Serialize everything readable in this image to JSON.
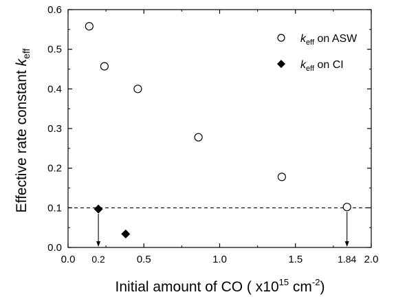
{
  "chart_data": {
    "type": "scatter",
    "xlim": [
      0.0,
      2.0
    ],
    "ylim": [
      0.0,
      0.6
    ],
    "x_ticks": [
      0.0,
      0.5,
      1.0,
      1.5,
      2.0
    ],
    "x_tick_labels": [
      "0.0",
      "0.5",
      "1.0",
      "1.5",
      "2.0"
    ],
    "y_ticks": [
      0.0,
      0.1,
      0.2,
      0.3,
      0.4,
      0.5,
      0.6
    ],
    "y_tick_labels": [
      "0.0",
      "0.1",
      "0.2",
      "0.3",
      "0.4",
      "0.5",
      "0.6"
    ],
    "xlabel": {
      "main": "Initial amount of CO ( x10",
      "sup": "15",
      "mid": " cm",
      "sup2": "-2",
      "end": ")"
    },
    "ylabel": {
      "main": "Effective rate constant ",
      "k": "k",
      "sub": "eff"
    },
    "grid": false,
    "legend_position": "top-right",
    "series": [
      {
        "name": {
          "k": "k",
          "sub": "eff",
          "rest": " on ASW"
        },
        "marker": "open-circle",
        "color": "#000000",
        "points": [
          {
            "x": 0.14,
            "y": 0.558
          },
          {
            "x": 0.24,
            "y": 0.457
          },
          {
            "x": 0.46,
            "y": 0.4
          },
          {
            "x": 0.86,
            "y": 0.278
          },
          {
            "x": 1.41,
            "y": 0.178
          },
          {
            "x": 1.84,
            "y": 0.102
          }
        ]
      },
      {
        "name": {
          "k": "k",
          "sub": "eff",
          "rest": " on CI"
        },
        "marker": "filled-diamond",
        "color": "#000000",
        "points": [
          {
            "x": 0.2,
            "y": 0.097
          },
          {
            "x": 0.38,
            "y": 0.034
          }
        ]
      }
    ],
    "reference_line": {
      "y": 0.1,
      "style": "dashed"
    },
    "annotations": [
      {
        "label": "0.2",
        "x": 0.2,
        "from_y": 0.097
      },
      {
        "label": "1.84",
        "x": 1.84,
        "from_y": 0.102
      }
    ]
  }
}
